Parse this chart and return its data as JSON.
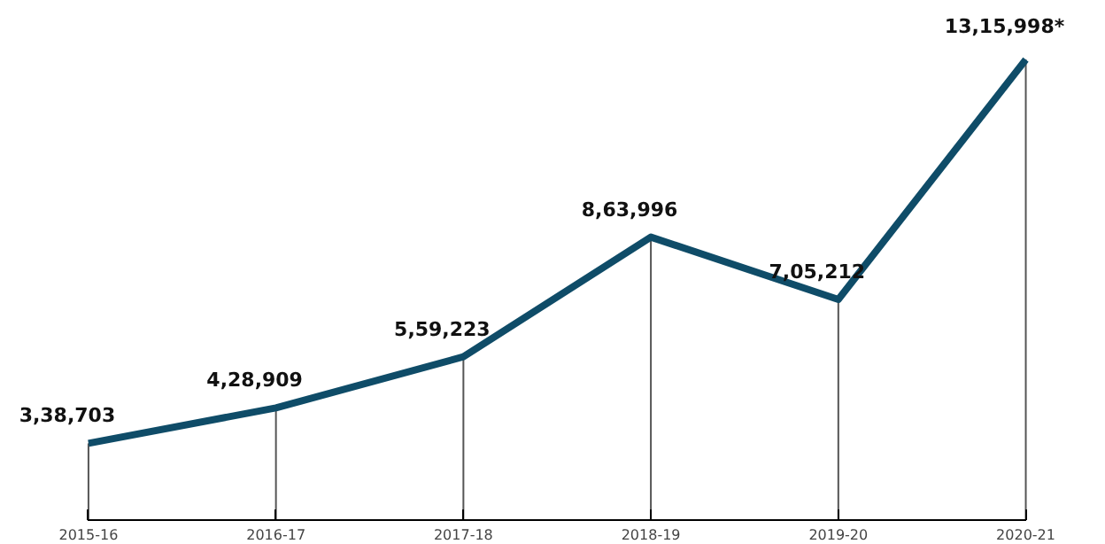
{
  "chart_data": {
    "type": "line",
    "categories": [
      "2015-16",
      "2016-17",
      "2017-18",
      "2018-19",
      "2019-20",
      "2020-21"
    ],
    "series": [
      {
        "color": "#0f4c68",
        "values": [
          338703,
          428909,
          559223,
          863996,
          705212,
          1315998
        ],
        "value_labels": [
          "3,38,703",
          "4,28,909",
          "5,59,223",
          "8,63,996",
          "7,05,212",
          "13,15,998*"
        ]
      }
    ],
    "grid": "x",
    "marker": "none",
    "line_style": "solid"
  }
}
